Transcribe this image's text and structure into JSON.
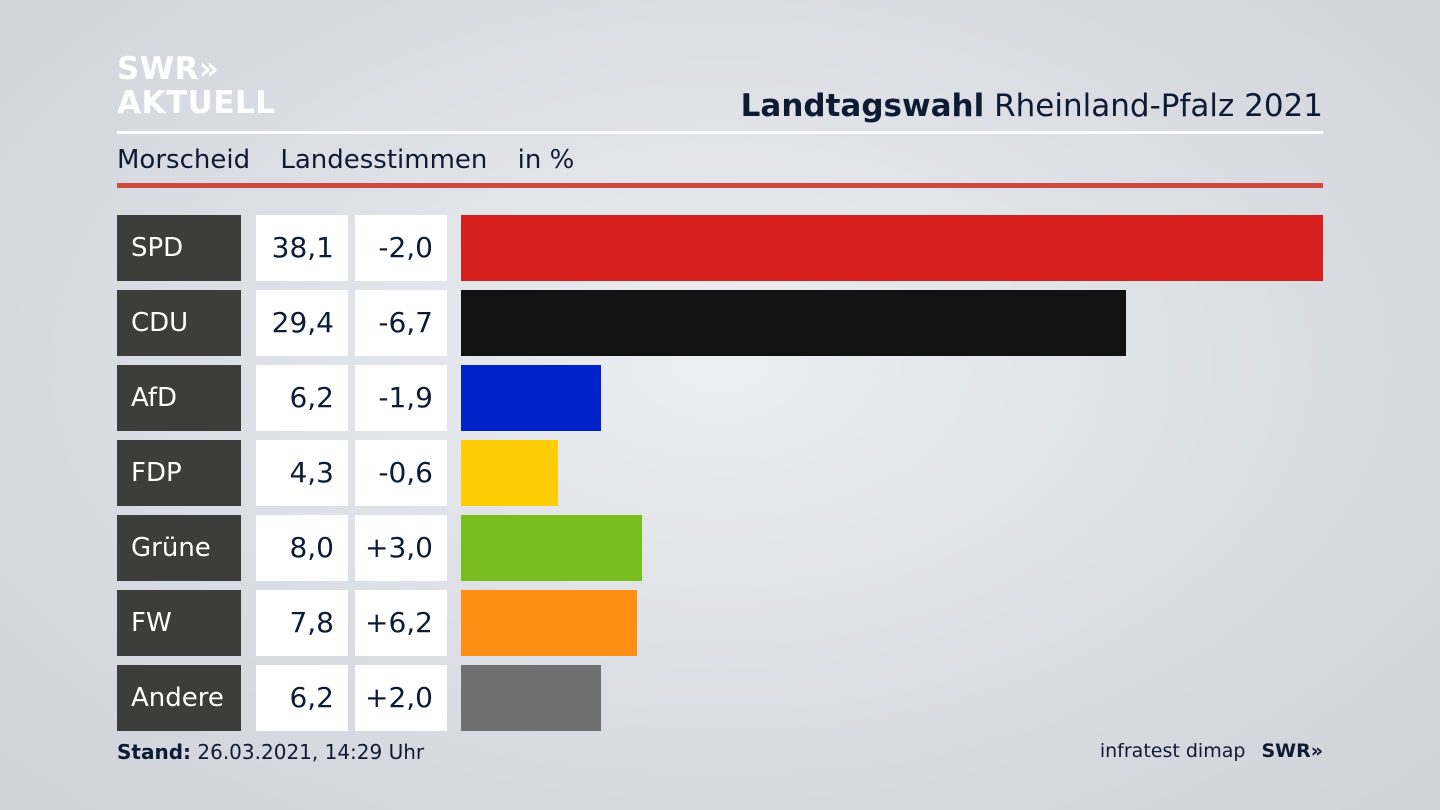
{
  "logo": {
    "line1": "SWR»",
    "line2": "AKTUELL"
  },
  "header": {
    "title_bold": "Landtagswahl",
    "title_rest": "Rheinland-Pfalz 2021"
  },
  "subheader": {
    "place": "Morscheid",
    "measure": "Landesstimmen",
    "unit": "in %"
  },
  "footer": {
    "stand_label": "Stand:",
    "stand_value": "26.03.2021, 14:29 Uhr",
    "source": "infratest dimap",
    "brand": "SWR»"
  },
  "chart_data": {
    "type": "bar",
    "orientation": "horizontal",
    "categories": [
      "SPD",
      "CDU",
      "AfD",
      "FDP",
      "Grüne",
      "FW",
      "Andere"
    ],
    "values": [
      38.1,
      29.4,
      6.2,
      4.3,
      8.0,
      7.8,
      6.2
    ],
    "value_labels": [
      "38,1",
      "29,4",
      "6,2",
      "4,3",
      "8,0",
      "7,8",
      "6,2"
    ],
    "diff_labels": [
      "-2,0",
      "-6,7",
      "-1,9",
      "-0,6",
      "+3,0",
      "+6,2",
      "+2,0"
    ],
    "colors": [
      "#d61f1f",
      "#121212",
      "#0022c9",
      "#ffcd05",
      "#78be1e",
      "#ff8e16",
      "#707070"
    ],
    "xlim": [
      0,
      38.1
    ]
  }
}
